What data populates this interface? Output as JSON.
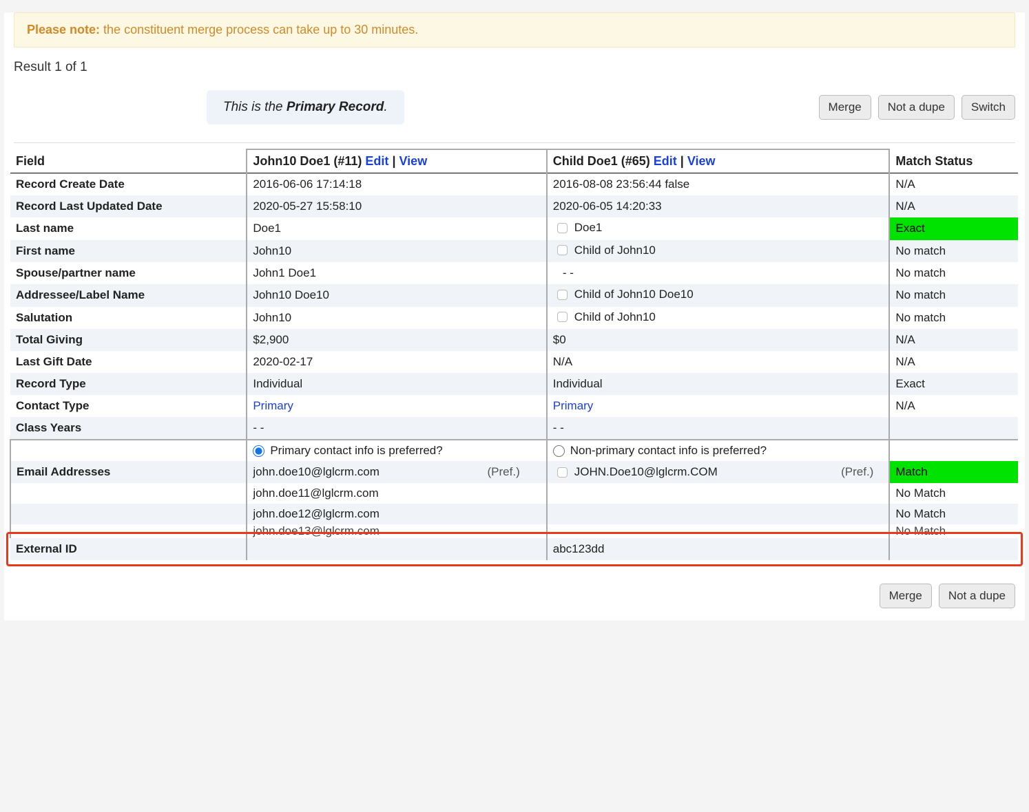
{
  "colors": {
    "notice_bg": "#fdf8e4",
    "notice_text": "#d08a2a",
    "primary_note_bg": "#eef3fa",
    "link": "#1a3fe0",
    "match_green": "#00e300",
    "highlight_border": "#e63a1f",
    "row_odd": "#f0f3f7",
    "row_even": "#ffffff"
  },
  "notice": {
    "strong": "Please note:",
    "text": " the constituent merge process can take up to 30 minutes."
  },
  "result_count": "Result 1 of 1",
  "primary_note_prefix": "This is the ",
  "primary_note_strong": "Primary Record",
  "primary_note_suffix": ".",
  "buttons": {
    "merge": "Merge",
    "not_dupe": "Not a dupe",
    "switch": "Switch"
  },
  "headers": {
    "field": "Field",
    "primary_name": "John10 Doe1 (#11) ",
    "dup_name": "Child Doe1 (#65) ",
    "edit": "Edit",
    "view": "View",
    "match_status": "Match Status"
  },
  "rows": {
    "create_date": {
      "label": "Record Create Date",
      "p": "2016-06-06 17:14:18",
      "d": "2016-08-08 23:56:44 false",
      "m": "N/A"
    },
    "updated_date": {
      "label": "Record Last Updated Date",
      "p": "2020-05-27 15:58:10",
      "d": "2020-06-05 14:20:33",
      "m": "N/A"
    },
    "last_name": {
      "label": "Last name",
      "p": "Doe1",
      "d": "Doe1",
      "m": "Exact"
    },
    "first_name": {
      "label": "First name",
      "p": "John10",
      "d": "Child of John10",
      "m": "No match"
    },
    "spouse": {
      "label": "Spouse/partner name",
      "p": "John1 Doe1",
      "d": "   - -",
      "m": "No match"
    },
    "addressee": {
      "label": "Addressee/Label Name",
      "p": "John10 Doe10",
      "d": "Child of John10 Doe10",
      "m": "No match"
    },
    "salutation": {
      "label": "Salutation",
      "p": "John10",
      "d": "Child of John10",
      "m": "No match"
    },
    "total_giving": {
      "label": "Total Giving",
      "p": "$2,900",
      "d": "$0",
      "m": "N/A"
    },
    "last_gift": {
      "label": "Last Gift Date",
      "p": "2020-02-17",
      "d": "N/A",
      "m": "N/A"
    },
    "record_type": {
      "label": "Record Type",
      "p": "Individual",
      "d": "Individual",
      "m": "Exact"
    },
    "contact_type": {
      "label": "Contact Type",
      "p": "Primary",
      "d": "Primary",
      "m": "N/A"
    },
    "class_years": {
      "label": "Class Years",
      "p": "- -",
      "d": "- -",
      "m": ""
    }
  },
  "preference": {
    "primary_label": "Primary contact info is preferred?",
    "nonprimary_label": "Non-primary contact info is preferred?"
  },
  "emails": {
    "label": "Email Addresses",
    "pref_tag": "(Pref.)",
    "primary": [
      "john.doe10@lglcrm.com",
      "john.doe11@lglcrm.com",
      "john.doe12@lglcrm.com",
      "john.doe13@lglcrm.com"
    ],
    "dup": "JOHN.Doe10@lglcrm.COM",
    "match": [
      "Match",
      "No Match",
      "No Match",
      "No Match"
    ]
  },
  "external_id": {
    "label": "External ID",
    "p": "",
    "d": "abc123dd",
    "m": ""
  }
}
